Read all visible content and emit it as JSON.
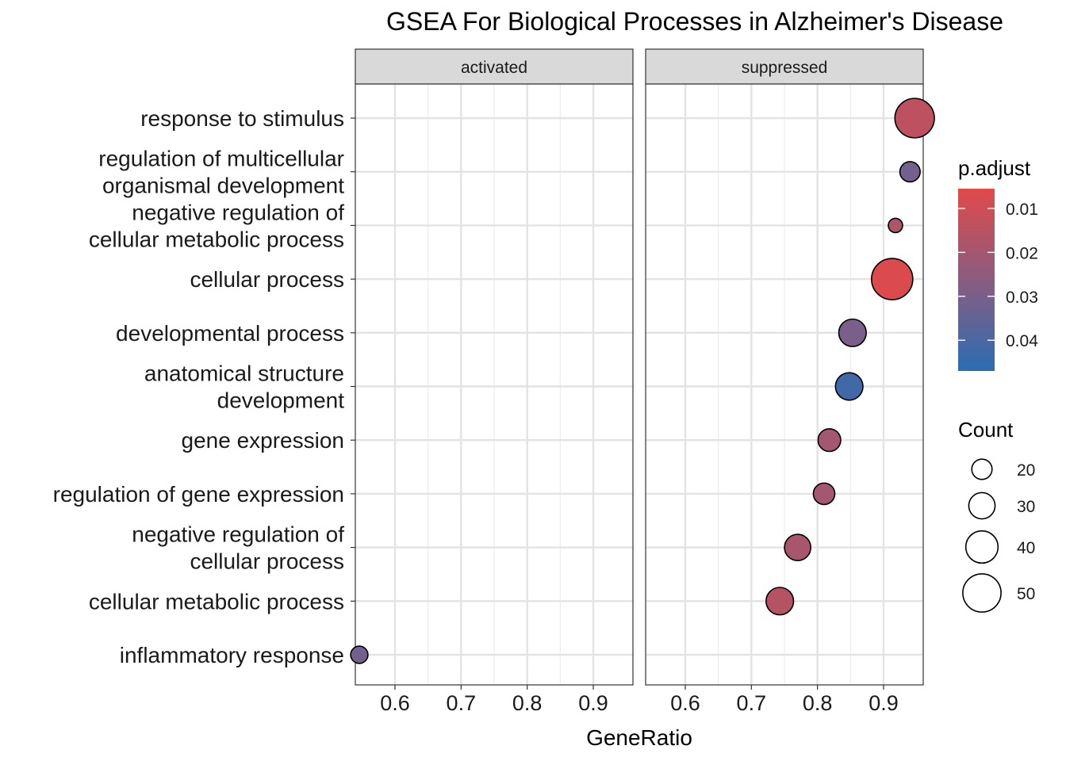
{
  "chart_data": {
    "type": "scatter",
    "title": "GSEA For Biological Processes in Alzheimer's Disease",
    "xlabel": "GeneRatio",
    "ylabel": "",
    "panels": [
      "activated",
      "suppressed"
    ],
    "xlim": [
      0.54,
      0.96
    ],
    "xticks": [
      0.6,
      0.7,
      0.8,
      0.9
    ],
    "xtick_labels": [
      "0.6",
      "0.7",
      "0.8",
      "0.9"
    ],
    "grid": true,
    "categories": [
      [
        "response to stimulus"
      ],
      [
        "regulation of multicellular",
        "organismal development"
      ],
      [
        "negative regulation of",
        "cellular metabolic process"
      ],
      [
        "cellular process"
      ],
      [
        "developmental process"
      ],
      [
        "anatomical structure",
        "development"
      ],
      [
        "gene expression"
      ],
      [
        "regulation of gene expression"
      ],
      [
        "negative regulation of",
        "cellular process"
      ],
      [
        "cellular metabolic process"
      ],
      [
        "inflammatory response"
      ]
    ],
    "points": [
      {
        "category_index": 0,
        "panel": "suppressed",
        "gene_ratio": 0.947,
        "count": 52,
        "p_adjust": 0.014
      },
      {
        "category_index": 1,
        "panel": "suppressed",
        "gene_ratio": 0.94,
        "count": 20,
        "p_adjust": 0.031
      },
      {
        "category_index": 2,
        "panel": "suppressed",
        "gene_ratio": 0.918,
        "count": 10,
        "p_adjust": 0.018
      },
      {
        "category_index": 3,
        "panel": "suppressed",
        "gene_ratio": 0.913,
        "count": 55,
        "p_adjust": 0.007
      },
      {
        "category_index": 4,
        "panel": "suppressed",
        "gene_ratio": 0.853,
        "count": 32,
        "p_adjust": 0.03
      },
      {
        "category_index": 5,
        "panel": "suppressed",
        "gene_ratio": 0.848,
        "count": 32,
        "p_adjust": 0.042
      },
      {
        "category_index": 6,
        "panel": "suppressed",
        "gene_ratio": 0.818,
        "count": 24,
        "p_adjust": 0.02
      },
      {
        "category_index": 7,
        "panel": "suppressed",
        "gene_ratio": 0.81,
        "count": 22,
        "p_adjust": 0.02
      },
      {
        "category_index": 8,
        "panel": "suppressed",
        "gene_ratio": 0.77,
        "count": 30,
        "p_adjust": 0.019
      },
      {
        "category_index": 9,
        "panel": "suppressed",
        "gene_ratio": 0.743,
        "count": 32,
        "p_adjust": 0.016
      },
      {
        "category_index": 10,
        "panel": "activated",
        "gene_ratio": 0.546,
        "count": 15,
        "p_adjust": 0.031
      }
    ],
    "color_legend": {
      "title": "p.adjust",
      "ticks": [
        0.01,
        0.02,
        0.03,
        0.04
      ],
      "tick_labels": [
        "0.01",
        "0.02",
        "0.03",
        "0.04"
      ],
      "range": [
        0.0055,
        0.047
      ],
      "low_color": "#e14a4a",
      "high_color": "#2b6db3"
    },
    "size_legend": {
      "title": "Count",
      "values": [
        20,
        30,
        40,
        50
      ],
      "labels": [
        "20",
        "30",
        "40",
        "50"
      ]
    }
  }
}
